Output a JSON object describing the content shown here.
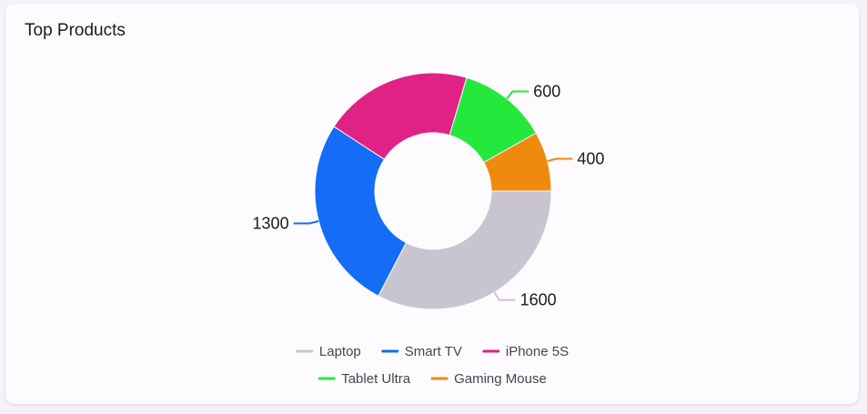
{
  "card": {
    "title": "Top Products"
  },
  "chart_data": {
    "type": "pie",
    "donut": true,
    "title": "Top Products",
    "categories": [
      "Laptop",
      "Smart TV",
      "iPhone 5S",
      "Tablet Ultra",
      "Gaming Mouse"
    ],
    "values": [
      1600,
      1300,
      1000,
      600,
      400
    ],
    "data_labels": [
      "1600",
      "1300",
      "",
      "600",
      "400"
    ],
    "colors": [
      "#c9c5d0",
      "#146cf7",
      "#e02286",
      "#25e83d",
      "#f08a0c"
    ],
    "legend_position": "bottom"
  }
}
